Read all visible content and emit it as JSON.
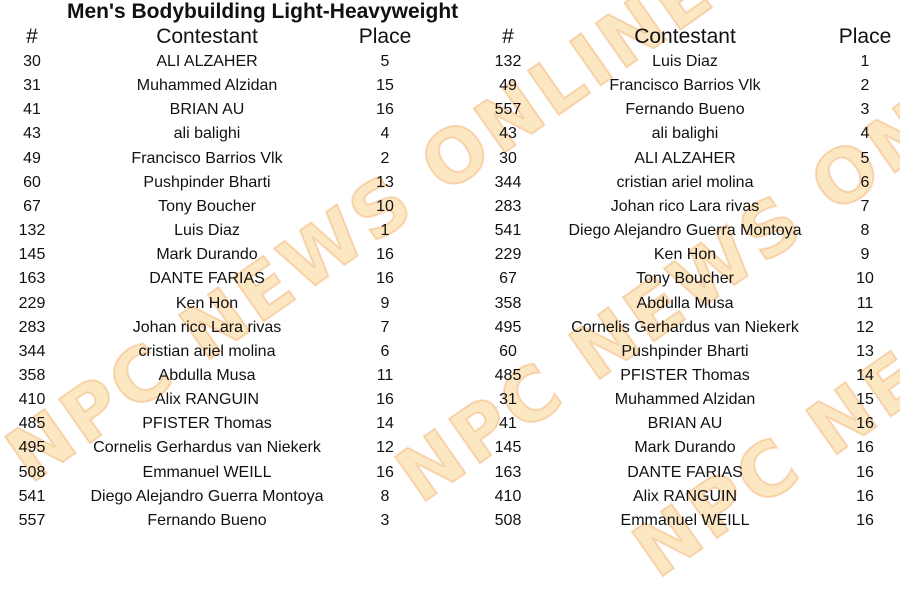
{
  "title": "Men's Bodybuilding Light-Heavyweight",
  "watermark": "NPC NEWS ONLINE",
  "headers": {
    "number": "#",
    "contestant": "Contestant",
    "place": "Place"
  },
  "left_table": [
    [
      "30",
      "ALI ALZAHER",
      "5"
    ],
    [
      "31",
      "Muhammed Alzidan",
      "15"
    ],
    [
      "41",
      "BRIAN AU",
      "16"
    ],
    [
      "43",
      "ali balighi",
      "4"
    ],
    [
      "49",
      "Francisco Barrios Vlk",
      "2"
    ],
    [
      "60",
      "Pushpinder Bharti",
      "13"
    ],
    [
      "67",
      "Tony Boucher",
      "10"
    ],
    [
      "132",
      "Luis Diaz",
      "1"
    ],
    [
      "145",
      "Mark Durando",
      "16"
    ],
    [
      "163",
      "DANTE FARIAS",
      "16"
    ],
    [
      "229",
      "Ken Hon",
      "9"
    ],
    [
      "283",
      "Johan rico Lara rivas",
      "7"
    ],
    [
      "344",
      "cristian ariel molina",
      "6"
    ],
    [
      "358",
      "Abdulla Musa",
      "11"
    ],
    [
      "410",
      "Alix RANGUIN",
      "16"
    ],
    [
      "485",
      "PFISTER Thomas",
      "14"
    ],
    [
      "495",
      "Cornelis Gerhardus van Niekerk",
      "12"
    ],
    [
      "508",
      "Emmanuel WEILL",
      "16"
    ],
    [
      "541",
      "Diego Alejandro Guerra Montoya",
      "8"
    ],
    [
      "557",
      "Fernando Bueno",
      "3"
    ]
  ],
  "right_table": [
    [
      "132",
      "Luis Diaz",
      "1"
    ],
    [
      "49",
      "Francisco Barrios Vlk",
      "2"
    ],
    [
      "557",
      "Fernando Bueno",
      "3"
    ],
    [
      "43",
      "ali balighi",
      "4"
    ],
    [
      "30",
      "ALI ALZAHER",
      "5"
    ],
    [
      "344",
      "cristian ariel molina",
      "6"
    ],
    [
      "283",
      "Johan rico Lara rivas",
      "7"
    ],
    [
      "541",
      "Diego Alejandro Guerra Montoya",
      "8"
    ],
    [
      "229",
      "Ken Hon",
      "9"
    ],
    [
      "67",
      "Tony Boucher",
      "10"
    ],
    [
      "358",
      "Abdulla Musa",
      "11"
    ],
    [
      "495",
      "Cornelis Gerhardus van Niekerk",
      "12"
    ],
    [
      "60",
      "Pushpinder Bharti",
      "13"
    ],
    [
      "485",
      "PFISTER Thomas",
      "14"
    ],
    [
      "31",
      "Muhammed Alzidan",
      "15"
    ],
    [
      "41",
      "BRIAN AU",
      "16"
    ],
    [
      "145",
      "Mark Durando",
      "16"
    ],
    [
      "163",
      "DANTE FARIAS",
      "16"
    ],
    [
      "410",
      "Alix RANGUIN",
      "16"
    ],
    [
      "508",
      "Emmanuel WEILL",
      "16"
    ]
  ]
}
